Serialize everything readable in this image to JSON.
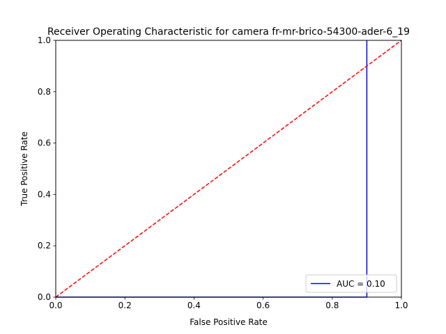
{
  "chart_data": {
    "type": "line",
    "title": "Receiver Operating Characteristic for camera fr-mr-brico-54300-ader-6_19",
    "xlabel": "False Positive Rate",
    "ylabel": "True Positive Rate",
    "xlim": [
      0,
      1
    ],
    "ylim": [
      0,
      1
    ],
    "x_ticks": [
      "0.0",
      "0.2",
      "0.4",
      "0.6",
      "0.8",
      "1.0"
    ],
    "y_ticks": [
      "0.0",
      "0.2",
      "0.4",
      "0.6",
      "0.8",
      "1.0"
    ],
    "grid": false,
    "legend_position": "lower right",
    "series": [
      {
        "name": "AUC = 0.10",
        "color": "#0000ff",
        "style": "solid",
        "x": [
          0.0,
          0.9,
          0.9
        ],
        "y": [
          0.0,
          0.0,
          1.0
        ]
      },
      {
        "color": "#ff0000",
        "style": "dashed",
        "x": [
          0.0,
          1.0
        ],
        "y": [
          0.0,
          1.0
        ]
      }
    ]
  }
}
